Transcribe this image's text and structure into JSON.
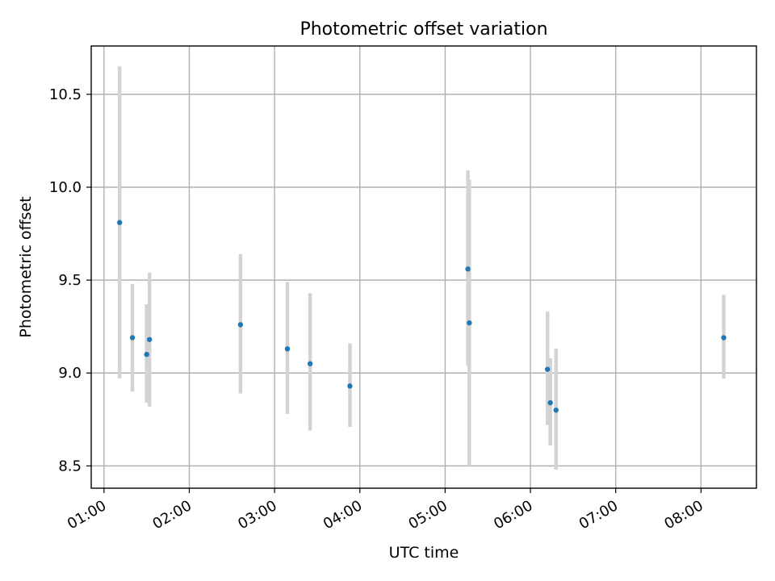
{
  "chart_data": {
    "type": "scatter",
    "title": "Photometric offset variation",
    "xlabel": "UTC time",
    "ylabel": "Photometric offset",
    "x_ticks": [
      "01:00",
      "02:00",
      "03:00",
      "04:00",
      "05:00",
      "06:00",
      "07:00",
      "08:00"
    ],
    "y_ticks": [
      "8.5",
      "9.0",
      "9.5",
      "10.0",
      "10.5"
    ],
    "xlim": [
      "00:51",
      "08:39"
    ],
    "ylim": [
      8.38,
      10.76
    ],
    "grid": true,
    "errorbar_color": "#d3d3d3",
    "marker_color": "#1f77b4",
    "points": [
      {
        "x": "01:11",
        "y": 9.81,
        "ylow": 8.97,
        "yhigh": 10.65
      },
      {
        "x": "01:20",
        "y": 9.19,
        "ylow": 8.9,
        "yhigh": 9.48
      },
      {
        "x": "01:30",
        "y": 9.1,
        "ylow": 8.84,
        "yhigh": 9.37
      },
      {
        "x": "01:32",
        "y": 9.18,
        "ylow": 8.82,
        "yhigh": 9.54
      },
      {
        "x": "02:36",
        "y": 9.26,
        "ylow": 8.89,
        "yhigh": 9.64
      },
      {
        "x": "03:09",
        "y": 9.13,
        "ylow": 8.78,
        "yhigh": 9.49
      },
      {
        "x": "03:25",
        "y": 9.05,
        "ylow": 8.69,
        "yhigh": 9.43
      },
      {
        "x": "03:53",
        "y": 8.93,
        "ylow": 8.71,
        "yhigh": 9.16
      },
      {
        "x": "05:16",
        "y": 9.56,
        "ylow": 9.04,
        "yhigh": 10.09
      },
      {
        "x": "05:17",
        "y": 9.27,
        "ylow": 8.5,
        "yhigh": 10.04
      },
      {
        "x": "06:12",
        "y": 9.02,
        "ylow": 8.72,
        "yhigh": 9.33
      },
      {
        "x": "06:14",
        "y": 8.84,
        "ylow": 8.61,
        "yhigh": 9.08
      },
      {
        "x": "06:18",
        "y": 8.8,
        "ylow": 8.48,
        "yhigh": 9.13
      },
      {
        "x": "08:16",
        "y": 9.19,
        "ylow": 8.97,
        "yhigh": 9.42
      }
    ]
  }
}
